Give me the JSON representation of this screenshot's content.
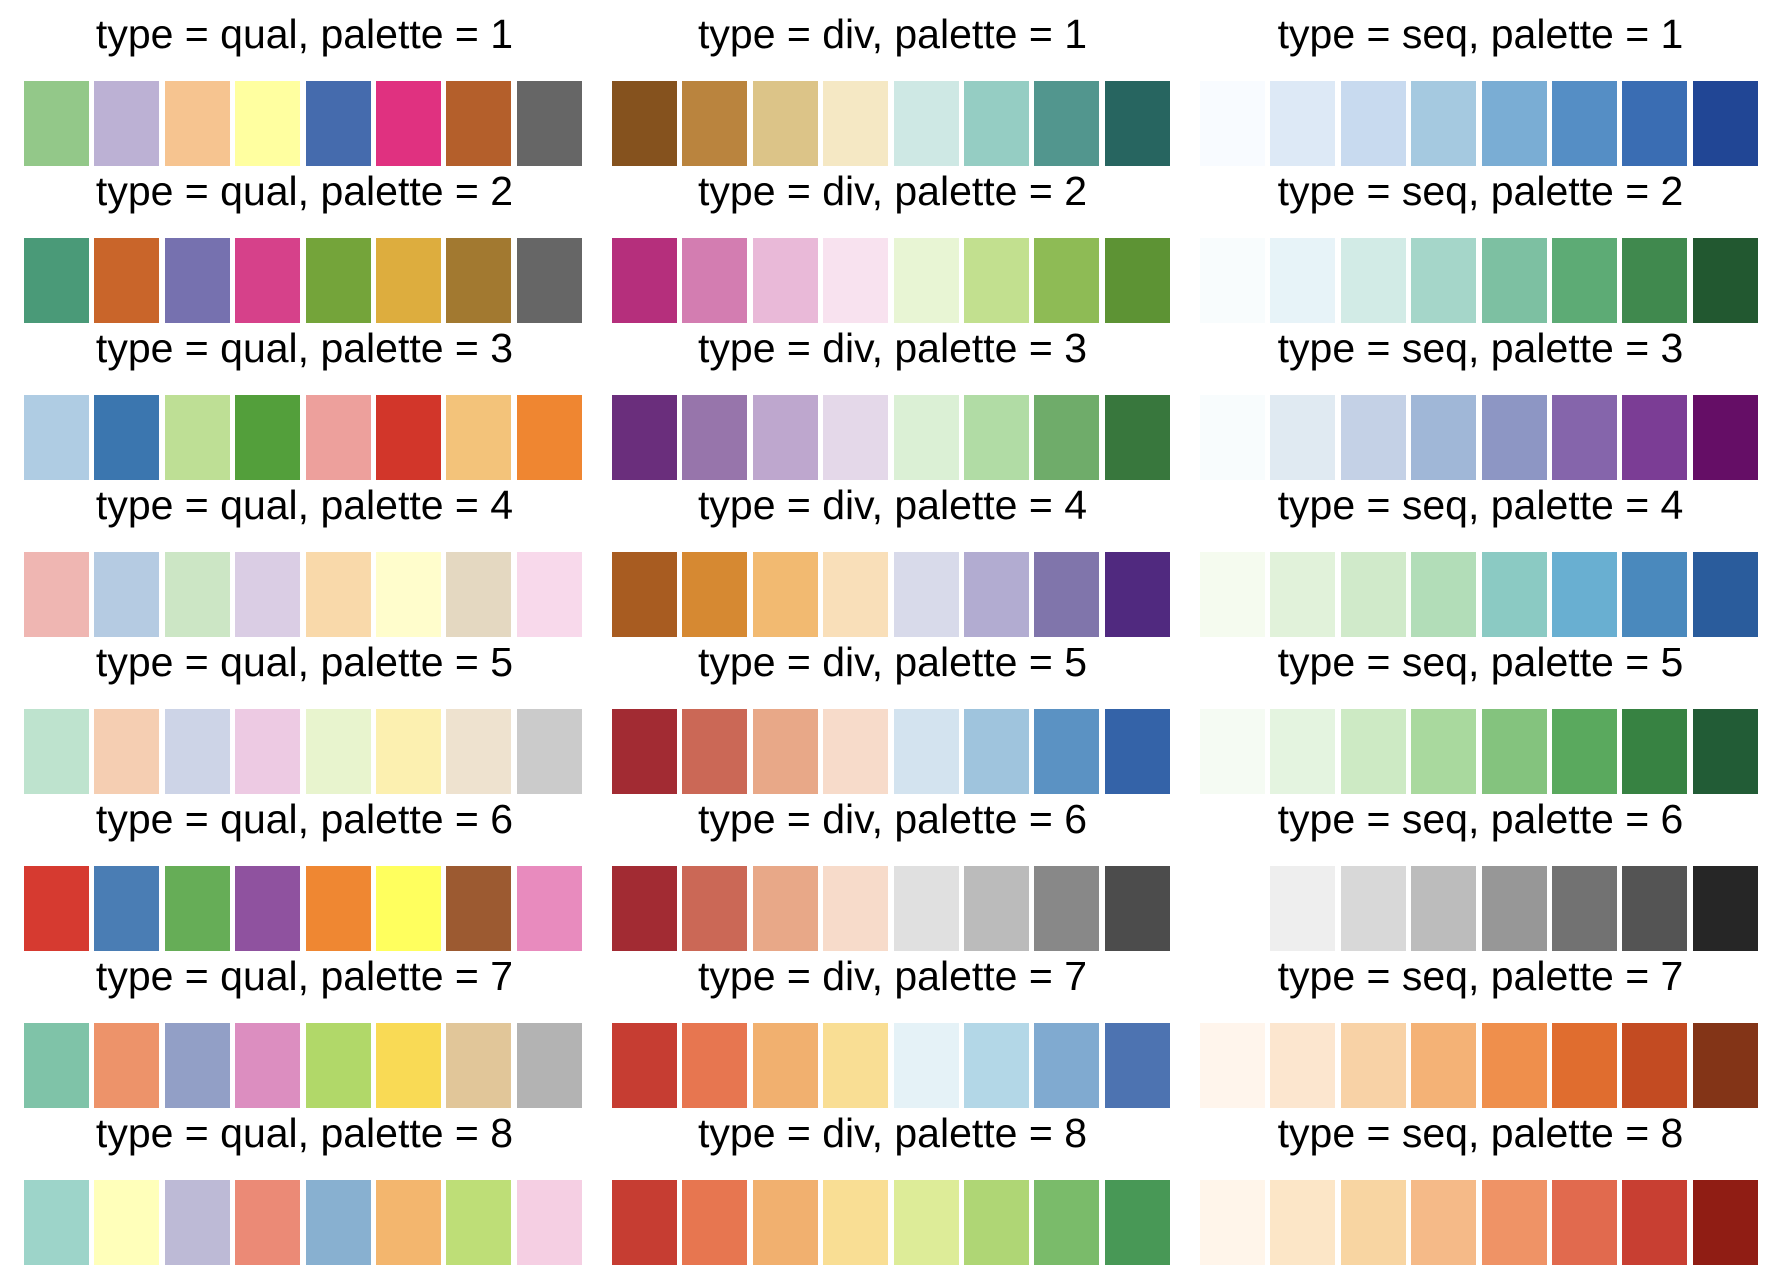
{
  "figure": {
    "panels": [
      {
        "type": "qual",
        "palette": 1,
        "title": "type = qual, palette = 1",
        "colors": [
          "#93C889",
          "#BCB1D4",
          "#F6C490",
          "#FFFFA0",
          "#456BAD",
          "#E03180",
          "#B45F2B",
          "#666666"
        ]
      },
      {
        "type": "div",
        "palette": 1,
        "title": "type = div, palette = 1",
        "colors": [
          "#85521E",
          "#BA843E",
          "#DCC488",
          "#F5E8C4",
          "#CEE8E4",
          "#95CDC3",
          "#52968E",
          "#276560"
        ]
      },
      {
        "type": "seq",
        "palette": 1,
        "title": "type = seq, palette = 1",
        "colors": [
          "#F8FBFF",
          "#DDE9F6",
          "#C8DAEF",
          "#A5C9E0",
          "#7AADD4",
          "#558EC5",
          "#3A6DB3",
          "#214695"
        ]
      },
      {
        "type": "qual",
        "palette": 2,
        "title": "type = qual, palette = 2",
        "colors": [
          "#4A9A78",
          "#C9652A",
          "#7671AF",
          "#D6418A",
          "#74A43A",
          "#DDAD3E",
          "#A27930",
          "#666666"
        ]
      },
      {
        "type": "div",
        "palette": 2,
        "title": "type = div, palette = 2",
        "colors": [
          "#B52F7C",
          "#D37DB1",
          "#E9B9D8",
          "#F8E2EF",
          "#E8F5D4",
          "#C2E08F",
          "#8EBB55",
          "#5D9334"
        ]
      },
      {
        "type": "seq",
        "palette": 2,
        "title": "type = seq, palette = 2",
        "colors": [
          "#F8FCFD",
          "#E7F3F8",
          "#D2EBE6",
          "#A5D6C9",
          "#7DC0A2",
          "#5DAB75",
          "#40894E",
          "#225830"
        ]
      },
      {
        "type": "qual",
        "palette": 3,
        "title": "type = qual, palette = 3",
        "colors": [
          "#AFCCE3",
          "#3B76AF",
          "#BEDF95",
          "#539F3B",
          "#EDA09C",
          "#D2362A",
          "#F3C37A",
          "#EF8631"
        ]
      },
      {
        "type": "div",
        "palette": 3,
        "title": "type = div, palette = 3",
        "colors": [
          "#6A2E7C",
          "#9775AB",
          "#BEA7CE",
          "#E4D8E9",
          "#DBF0D5",
          "#B1DCA5",
          "#6FAC6A",
          "#38773D"
        ]
      },
      {
        "type": "seq",
        "palette": 3,
        "title": "type = seq, palette = 3",
        "colors": [
          "#F8FCFD",
          "#E0EAF2",
          "#C4D1E6",
          "#A0B7D7",
          "#8D96C4",
          "#8565AB",
          "#7B3D95",
          "#650E66"
        ]
      },
      {
        "type": "qual",
        "palette": 4,
        "title": "type = qual, palette = 4",
        "colors": [
          "#EFB6B2",
          "#B5CBE2",
          "#CCE6C5",
          "#DACDE4",
          "#F9D9AA",
          "#FFFDCC",
          "#E4D8C1",
          "#F8D9EB"
        ]
      },
      {
        "type": "div",
        "palette": 4,
        "title": "type = div, palette = 4",
        "colors": [
          "#A85C21",
          "#D68932",
          "#F2BA71",
          "#F9DFB9",
          "#D8DAEA",
          "#B2ACD1",
          "#8075AB",
          "#50297F"
        ]
      },
      {
        "type": "seq",
        "palette": 4,
        "title": "type = seq, palette = 4",
        "colors": [
          "#F5FBEF",
          "#E1F2DA",
          "#D0EACA",
          "#B2DDB8",
          "#8BCAC3",
          "#69AFD1",
          "#4A89BD",
          "#2A5C9C"
        ]
      },
      {
        "type": "qual",
        "palette": 5,
        "title": "type = qual, palette = 5",
        "colors": [
          "#BEE3CE",
          "#F5CEB2",
          "#CDD4E7",
          "#EDCAE3",
          "#E8F4CE",
          "#FCF0B0",
          "#EEE2CF",
          "#CBCBCB"
        ]
      },
      {
        "type": "div",
        "palette": 5,
        "title": "type = div, palette = 5",
        "colors": [
          "#A22B33",
          "#CB6856",
          "#E8A888",
          "#F7DBCA",
          "#D3E3EF",
          "#9FC4DD",
          "#5B92C3",
          "#3463A8"
        ]
      },
      {
        "type": "seq",
        "palette": 5,
        "title": "type = seq, palette = 5",
        "colors": [
          "#F5FBF3",
          "#E4F4E0",
          "#CDEAC4",
          "#A9D99E",
          "#84C37E",
          "#5AA95E",
          "#378242",
          "#225C36"
        ]
      },
      {
        "type": "qual",
        "palette": 6,
        "title": "type = qual, palette = 6",
        "colors": [
          "#D63A30",
          "#4A7DB4",
          "#66AD57",
          "#8F529F",
          "#EF8732",
          "#FFFF5E",
          "#9C5A31",
          "#E88BBE"
        ]
      },
      {
        "type": "div",
        "palette": 6,
        "title": "type = div, palette = 6",
        "colors": [
          "#A22B33",
          "#CB6856",
          "#E8A888",
          "#F7DBCA",
          "#E0E0E0",
          "#BBBBBB",
          "#888888",
          "#4C4C4C"
        ]
      },
      {
        "type": "seq",
        "palette": 6,
        "title": "type = seq, palette = 6",
        "colors": [
          "#FFFFFF",
          "#EEEEEE",
          "#D8D8D8",
          "#BCBCBC",
          "#979797",
          "#727272",
          "#545454",
          "#262626"
        ]
      },
      {
        "type": "qual",
        "palette": 7,
        "title": "type = qual, palette = 7",
        "colors": [
          "#7FC3A8",
          "#ED936A",
          "#929FC6",
          "#DC8EC0",
          "#B1D869",
          "#F9DA55",
          "#E1C699",
          "#B3B3B3"
        ]
      },
      {
        "type": "div",
        "palette": 7,
        "title": "type = div, palette = 7",
        "colors": [
          "#C63D32",
          "#E77650",
          "#F1B06F",
          "#F9DE94",
          "#E5F2F7",
          "#B3D7E7",
          "#80AAD0",
          "#4D73B1"
        ]
      },
      {
        "type": "seq",
        "palette": 7,
        "title": "type = seq, palette = 7",
        "colors": [
          "#FFF5EC",
          "#FCE6CF",
          "#F8D2A6",
          "#F4B276",
          "#EF8F4C",
          "#E06D2F",
          "#C34B22",
          "#833417"
        ]
      },
      {
        "type": "qual",
        "palette": 8,
        "title": "type = qual, palette = 8",
        "colors": [
          "#9DD4C9",
          "#FFFFBA",
          "#BDBAD6",
          "#EB8A76",
          "#88B0D0",
          "#F3B66E",
          "#BEDE77",
          "#F5CFE3"
        ]
      },
      {
        "type": "div",
        "palette": 8,
        "title": "type = div, palette = 8",
        "colors": [
          "#C63D32",
          "#E77650",
          "#F1B06F",
          "#F9DE94",
          "#DDEC98",
          "#AFD675",
          "#7ABB6A",
          "#489856"
        ]
      },
      {
        "type": "seq",
        "palette": 8,
        "title": "type = seq, palette = 8",
        "colors": [
          "#FFF5EA",
          "#FCE6C7",
          "#F8D5A2",
          "#F5BA88",
          "#EF9366",
          "#E16A4E",
          "#C83F32",
          "#901D14"
        ]
      }
    ]
  }
}
